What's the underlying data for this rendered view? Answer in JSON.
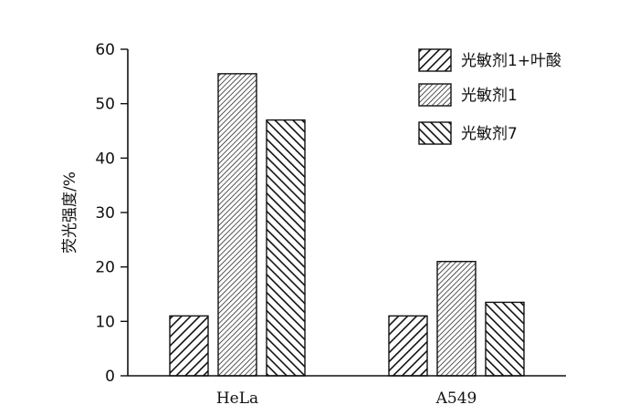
{
  "chart_data": {
    "type": "bar",
    "categories": [
      "HeLa",
      "A549"
    ],
    "series": [
      {
        "name": "光敏剂1+叶酸",
        "values": [
          11,
          11
        ],
        "pattern": "diag-forward"
      },
      {
        "name": "光敏剂1",
        "values": [
          55.5,
          21
        ],
        "pattern": "dense-forward"
      },
      {
        "name": "光敏剂7",
        "values": [
          47,
          13.5
        ],
        "pattern": "diag-back"
      }
    ],
    "title": "",
    "xlabel": "",
    "ylabel": "荧光强度/%",
    "ylim": [
      0,
      60
    ],
    "yticks": [
      0,
      10,
      20,
      30,
      40,
      50,
      60
    ],
    "grid": false,
    "legend_position": "top-right",
    "colors": {
      "stroke": "#111111",
      "background": "#ffffff"
    }
  }
}
